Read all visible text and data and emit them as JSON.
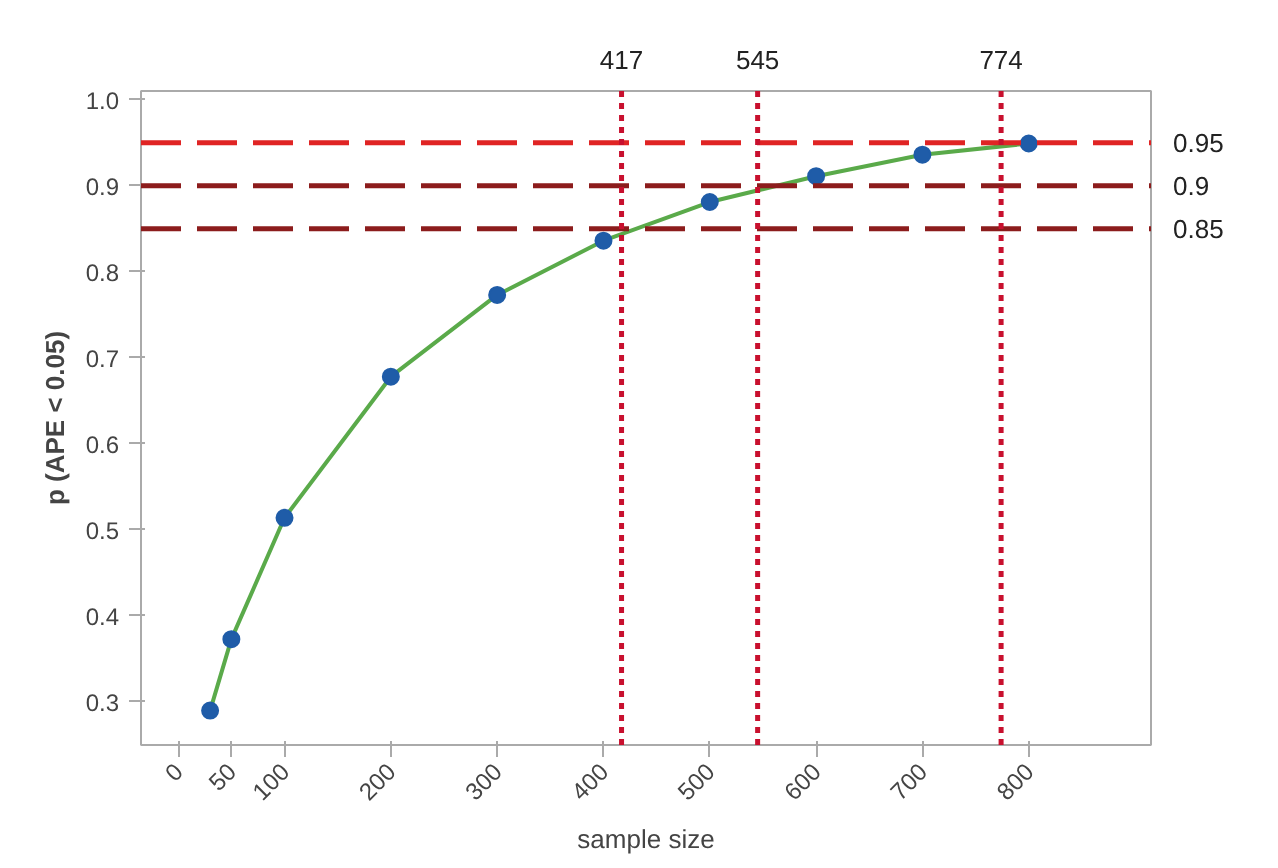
{
  "chart_data": {
    "type": "line",
    "xlabel": "sample size",
    "ylabel": "p (APE < 0.05)",
    "x": [
      30,
      50,
      100,
      200,
      300,
      400,
      500,
      600,
      700,
      800
    ],
    "series": [
      {
        "color": "#5aaa4a",
        "values": [
          0.29,
          0.373,
          0.514,
          0.678,
          0.773,
          0.836,
          0.881,
          0.911,
          0.936,
          0.949
        ]
      }
    ],
    "marker": "circle",
    "line_style": "solid",
    "grid": false,
    "xlim": [
      -35,
      915
    ],
    "ylim": [
      0.25,
      1.01
    ],
    "xticks": [
      0,
      50,
      100,
      200,
      300,
      400,
      500,
      600,
      700,
      800
    ],
    "yticks": [
      {
        "value": 0.3,
        "label": "0.3"
      },
      {
        "value": 0.4,
        "label": "0.4"
      },
      {
        "value": 0.5,
        "label": "0.5"
      },
      {
        "value": 0.6,
        "label": "0.6"
      },
      {
        "value": 0.7,
        "label": "0.7"
      },
      {
        "value": 0.8,
        "label": "0.8"
      },
      {
        "value": 0.9,
        "label": "0.9"
      },
      {
        "value": 1.0,
        "label": "1.0"
      }
    ],
    "ref_lines": [
      {
        "axis": "y",
        "value": 0.95,
        "label": "0.95",
        "color": "#e02424",
        "line_style": "dashed"
      },
      {
        "axis": "y",
        "value": 0.9,
        "label": "0.9",
        "color": "#8c1c1c",
        "line_style": "dashed"
      },
      {
        "axis": "y",
        "value": 0.85,
        "label": "0.85",
        "color": "#8c1c1c",
        "line_style": "dashed"
      },
      {
        "axis": "x",
        "value": 417,
        "label": "417",
        "color": "#c8102e",
        "line_style": "dotted"
      },
      {
        "axis": "x",
        "value": 545,
        "label": "545",
        "color": "#c8102e",
        "line_style": "dotted"
      },
      {
        "axis": "x",
        "value": 774,
        "label": "774",
        "color": "#c8102e",
        "line_style": "dotted"
      }
    ]
  }
}
